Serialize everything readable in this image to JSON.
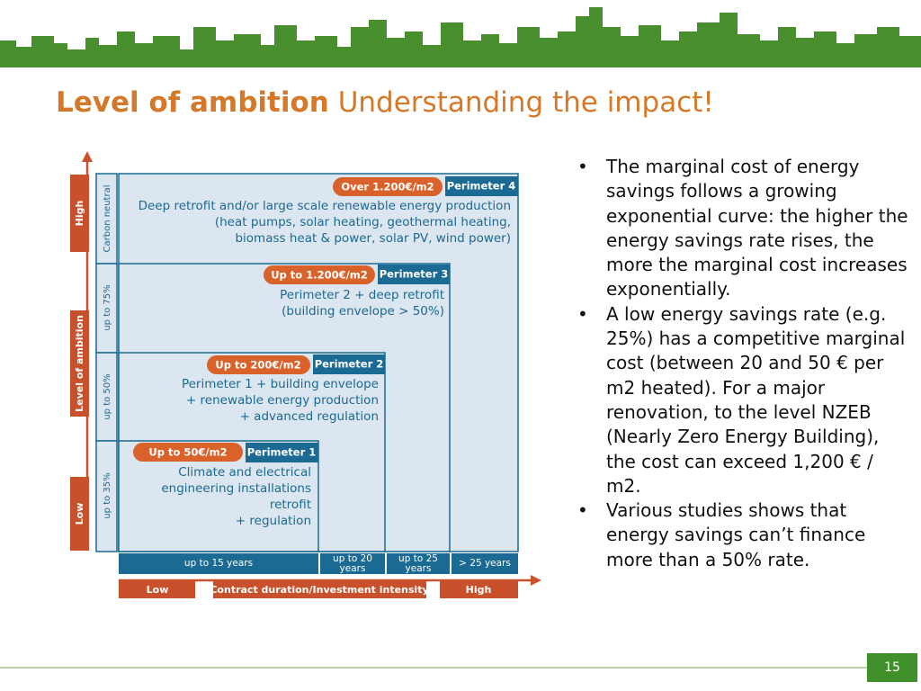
{
  "title": {
    "bold": "Level of ambition",
    "rest": "Understanding the impact!"
  },
  "diagram": {
    "y_axis": {
      "high": "High",
      "label": "Level of ambition",
      "low": "Low"
    },
    "rows": [
      "Carbon neutral",
      "up to 75%",
      "up to 50%",
      "up to 35%"
    ],
    "perimeters": [
      {
        "name": "Perimeter 4",
        "cost": "Over 1.200€/m2",
        "lines": [
          "Deep retrofit and/or large scale renewable energy production",
          "(heat pumps, solar heating, geothermal heating,",
          "biomass heat & power, solar PV, wind power)"
        ]
      },
      {
        "name": "Perimeter 3",
        "cost": "Up to 1.200€/m2",
        "lines": [
          "Perimeter 2 + deep retrofit",
          "(building envelope > 50%)"
        ]
      },
      {
        "name": "Perimeter 2",
        "cost": "Up to 200€/m2",
        "lines": [
          "Perimeter 1 + building envelope",
          "+ renewable energy production",
          "+ advanced regulation"
        ]
      },
      {
        "name": "Perimeter 1",
        "cost": "Up to 50€/m2",
        "lines": [
          "Climate and electrical",
          "engineering installations",
          "retrofit",
          "+ regulation"
        ]
      }
    ],
    "columns": [
      "up to 15 years",
      "up to 20 years",
      "up to 25 years",
      "> 25 years"
    ],
    "x_axis": {
      "low": "Low",
      "label": "Contract duration/Investment intensity",
      "high": "High"
    }
  },
  "bullets": [
    "The marginal cost of energy savings follows a growing exponential curve: the higher the energy savings rate rises, the more the marginal cost increases exponentially.",
    "A low energy savings rate (e.g. 25%) has a competitive marginal cost (between 20 and 50 € per m2 heated). For a major renovation, to the level NZEB (Nearly Zero Energy Building), the cost can exceed 1,200 € / m2.",
    "Various studies shows that energy savings can’t finance more than a 50% rate."
  ],
  "page_number": "15"
}
